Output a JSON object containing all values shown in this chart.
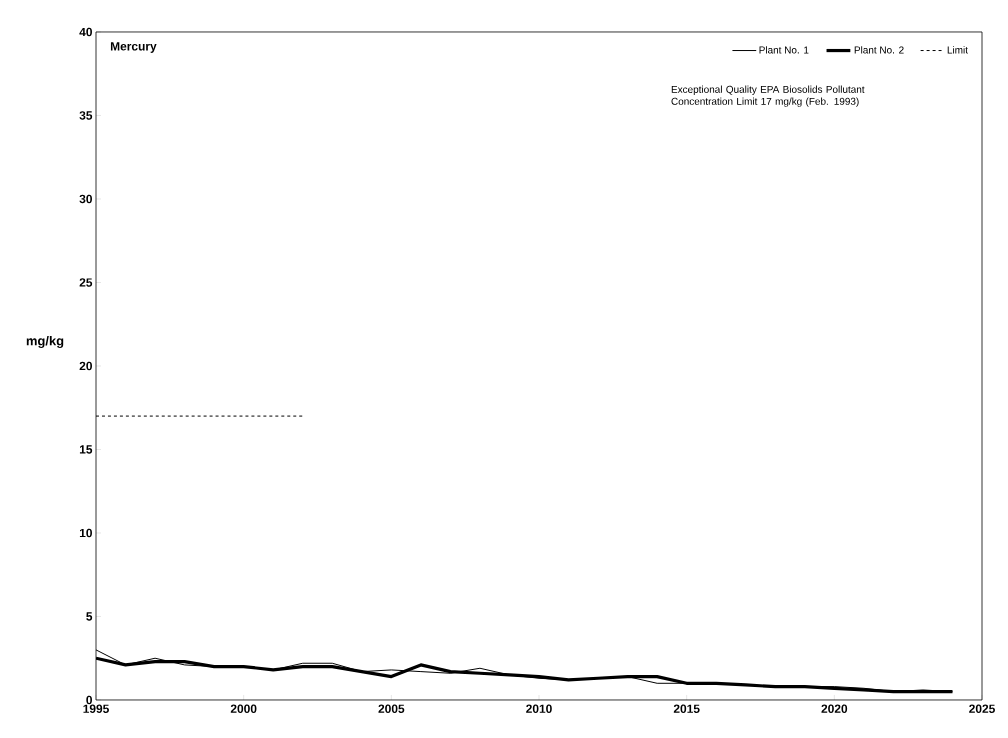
{
  "chart_data": {
    "type": "line",
    "title": "Mercury",
    "ylabel": "mg/kg",
    "annotations": [
      "Exceptional Quality EPA Biosolids Pollutant Concentration Limit 17 mg/kg  (Feb. 1993)"
    ],
    "x": [
      1995,
      1996,
      1997,
      1998,
      1999,
      2000,
      2001,
      2002,
      2003,
      2004,
      2005,
      2006,
      2007,
      2008,
      2009,
      2010,
      2011,
      2012,
      2013,
      2014,
      2015,
      2016,
      2017,
      2018,
      2019,
      2020,
      2021,
      2022,
      2023,
      2024
    ],
    "series": [
      {
        "name": "Plant No. 1",
        "color": "#000000",
        "line_style": "solid",
        "values": [
          3.0,
          2.1,
          2.5,
          2.1,
          2.0,
          2.0,
          1.8,
          2.2,
          2.2,
          1.7,
          1.8,
          1.7,
          1.6,
          1.9,
          1.5,
          1.3,
          1.2,
          1.3,
          1.4,
          1.0,
          1.0,
          1.0,
          0.9,
          0.8,
          0.8,
          0.8,
          0.7,
          0.5,
          0.6,
          0.5
        ]
      },
      {
        "name": "Plant No. 2",
        "color": "#000000",
        "line_style": "solid",
        "values": [
          2.5,
          2.1,
          2.3,
          2.3,
          2.0,
          2.0,
          1.8,
          2.0,
          2.0,
          1.7,
          1.4,
          2.1,
          1.7,
          1.6,
          1.5,
          1.4,
          1.2,
          1.3,
          1.4,
          1.4,
          1.0,
          1.0,
          0.9,
          0.8,
          0.8,
          0.7,
          0.6,
          0.5,
          0.5,
          0.5
        ]
      },
      {
        "name": "Limit",
        "color": "#000000",
        "line_style": "dashed",
        "x": [
          1995,
          2002
        ],
        "values": [
          17,
          17
        ]
      }
    ],
    "xlim": [
      1995,
      2025
    ],
    "xticks": [
      1995,
      2000,
      2005,
      2010,
      2015,
      2020,
      2025
    ],
    "ylim": [
      0,
      40
    ],
    "yticks": [
      0,
      5,
      10,
      15,
      20,
      25,
      30,
      35,
      40
    ],
    "legend": "top right"
  }
}
